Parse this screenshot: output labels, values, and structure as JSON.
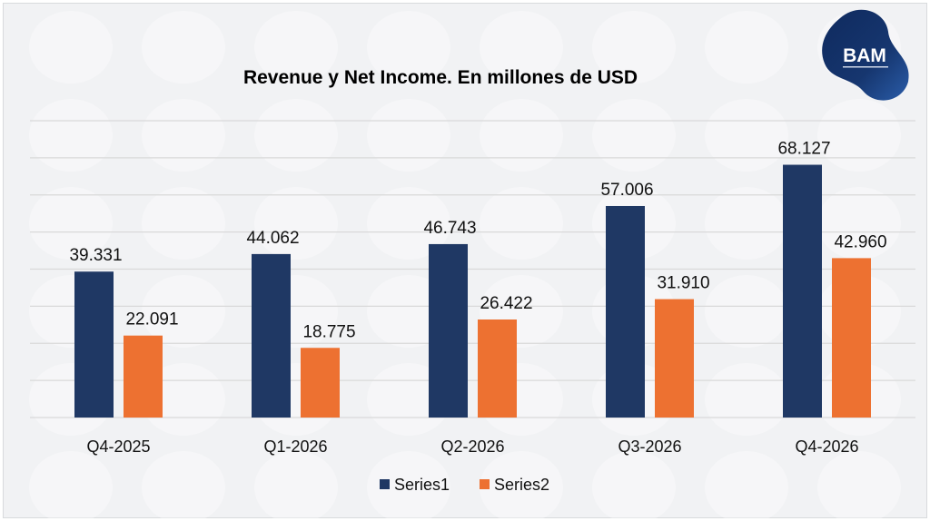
{
  "logo": {
    "text": "BAM",
    "watermark_text": "BAM"
  },
  "colors": {
    "series1": "#1f3864",
    "series2": "#ed7131",
    "grid": "#d9d9d9",
    "background": "#f1f2f4"
  },
  "chart_data": {
    "type": "bar",
    "title": "Revenue y Net Income. En millones de USD",
    "categories": [
      "Q4-2025",
      "Q1-2026",
      "Q2-2026",
      "Q3-2026",
      "Q4-2026"
    ],
    "series": [
      {
        "name": "Series1",
        "values": [
          39.331,
          44.062,
          46.743,
          57.006,
          68.127
        ],
        "labels": [
          "39.331",
          "44.062",
          "46.743",
          "57.006",
          "68.127"
        ]
      },
      {
        "name": "Series2",
        "values": [
          22.091,
          18.775,
          26.422,
          31.91,
          42.96
        ],
        "labels": [
          "22.091",
          "18.775",
          "26.422",
          "31.910",
          "42.960"
        ]
      }
    ],
    "ylim": [
      0,
      80
    ],
    "ystep": 10,
    "grid": true,
    "yaxis_labels_visible": false,
    "legend": "bottom",
    "xlabel": "",
    "ylabel": ""
  }
}
